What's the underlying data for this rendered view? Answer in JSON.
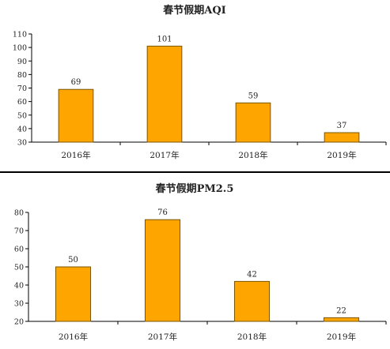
{
  "chart_data": [
    {
      "type": "bar",
      "title": "春节假期AQI",
      "categories": [
        "2016年",
        "2017年",
        "2018年",
        "2019年"
      ],
      "values": [
        69,
        101,
        59,
        37
      ],
      "ylim": [
        30,
        110
      ],
      "yticks": [
        30,
        40,
        50,
        60,
        70,
        80,
        90,
        100,
        110
      ],
      "xlabel": "",
      "ylabel": "",
      "grid": false,
      "legend": "none",
      "bar_color": "#FFA500",
      "bar_stroke": "#7a5500"
    },
    {
      "type": "bar",
      "title": "春节假期PM2.5",
      "categories": [
        "2016年",
        "2017年",
        "2018年",
        "2019年"
      ],
      "values": [
        50,
        76,
        42,
        22
      ],
      "ylim": [
        20,
        80
      ],
      "yticks": [
        20,
        30,
        40,
        50,
        60,
        70,
        80
      ],
      "xlabel": "",
      "ylabel": "",
      "grid": false,
      "legend": "none",
      "bar_color": "#FFA500",
      "bar_stroke": "#7a5500"
    }
  ]
}
